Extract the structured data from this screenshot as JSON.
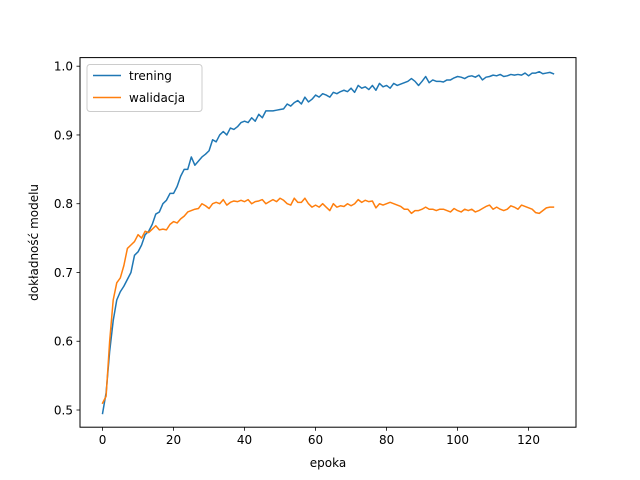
{
  "chart_data": {
    "type": "line",
    "title": "",
    "xlabel": "epoka",
    "ylabel": "dokładność modelu",
    "xlim": [
      -6.35,
      133.35
    ],
    "ylim": [
      0.475,
      1.0125
    ],
    "xticks": [
      0,
      20,
      40,
      60,
      80,
      100,
      120
    ],
    "yticks": [
      0.5,
      0.6,
      0.7,
      0.8,
      0.9,
      1.0
    ],
    "ytick_labels": [
      "0.5",
      "0.6",
      "0.7",
      "0.8",
      "0.9",
      "1.0"
    ],
    "grid": false,
    "legend_position": "upper-left",
    "series": [
      {
        "name": "trening",
        "color": "#1f77b4",
        "x": [
          0,
          1,
          2,
          3,
          4,
          5,
          6,
          7,
          8,
          9,
          10,
          11,
          12,
          13,
          14,
          15,
          16,
          17,
          18,
          19,
          20,
          21,
          22,
          23,
          24,
          25,
          26,
          27,
          28,
          29,
          30,
          31,
          32,
          33,
          34,
          35,
          36,
          37,
          38,
          39,
          40,
          41,
          42,
          43,
          44,
          45,
          46,
          47,
          48,
          49,
          50,
          51,
          52,
          53,
          54,
          55,
          56,
          57,
          58,
          59,
          60,
          61,
          62,
          63,
          64,
          65,
          66,
          67,
          68,
          69,
          70,
          71,
          72,
          73,
          74,
          75,
          76,
          77,
          78,
          79,
          80,
          81,
          82,
          83,
          84,
          85,
          86,
          87,
          88,
          89,
          90,
          91,
          92,
          93,
          94,
          95,
          96,
          97,
          98,
          99,
          100,
          101,
          102,
          103,
          104,
          105,
          106,
          107,
          108,
          109,
          110,
          111,
          112,
          113,
          114,
          115,
          116,
          117,
          118,
          119,
          120,
          121,
          122,
          123,
          124,
          125,
          126,
          127
        ],
        "values": [
          0.495,
          0.525,
          0.585,
          0.63,
          0.66,
          0.672,
          0.68,
          0.69,
          0.7,
          0.725,
          0.73,
          0.74,
          0.755,
          0.76,
          0.77,
          0.785,
          0.788,
          0.8,
          0.805,
          0.815,
          0.815,
          0.825,
          0.84,
          0.85,
          0.85,
          0.868,
          0.856,
          0.862,
          0.868,
          0.872,
          0.877,
          0.893,
          0.89,
          0.9,
          0.905,
          0.9,
          0.91,
          0.908,
          0.912,
          0.918,
          0.92,
          0.918,
          0.925,
          0.92,
          0.93,
          0.925,
          0.935,
          0.935,
          0.935,
          0.936,
          0.937,
          0.938,
          0.945,
          0.942,
          0.947,
          0.95,
          0.945,
          0.955,
          0.948,
          0.952,
          0.958,
          0.955,
          0.96,
          0.958,
          0.955,
          0.962,
          0.96,
          0.963,
          0.965,
          0.963,
          0.968,
          0.962,
          0.972,
          0.968,
          0.97,
          0.966,
          0.972,
          0.965,
          0.975,
          0.97,
          0.972,
          0.968,
          0.975,
          0.972,
          0.974,
          0.976,
          0.978,
          0.982,
          0.978,
          0.972,
          0.978,
          0.985,
          0.976,
          0.98,
          0.978,
          0.978,
          0.977,
          0.98,
          0.98,
          0.983,
          0.985,
          0.984,
          0.982,
          0.985,
          0.986,
          0.984,
          0.987,
          0.98,
          0.984,
          0.985,
          0.987,
          0.986,
          0.988,
          0.985,
          0.986,
          0.988,
          0.987,
          0.988,
          0.987,
          0.99,
          0.986,
          0.99,
          0.99,
          0.992,
          0.989,
          0.99,
          0.991,
          0.989
        ]
      },
      {
        "name": "walidacja",
        "color": "#ff7f0e",
        "x": [
          0,
          1,
          2,
          3,
          4,
          5,
          6,
          7,
          8,
          9,
          10,
          11,
          12,
          13,
          14,
          15,
          16,
          17,
          18,
          19,
          20,
          21,
          22,
          23,
          24,
          25,
          26,
          27,
          28,
          29,
          30,
          31,
          32,
          33,
          34,
          35,
          36,
          37,
          38,
          39,
          40,
          41,
          42,
          43,
          44,
          45,
          46,
          47,
          48,
          49,
          50,
          51,
          52,
          53,
          54,
          55,
          56,
          57,
          58,
          59,
          60,
          61,
          62,
          63,
          64,
          65,
          66,
          67,
          68,
          69,
          70,
          71,
          72,
          73,
          74,
          75,
          76,
          77,
          78,
          79,
          80,
          81,
          82,
          83,
          84,
          85,
          86,
          87,
          88,
          89,
          90,
          91,
          92,
          93,
          94,
          95,
          96,
          97,
          98,
          99,
          100,
          101,
          102,
          103,
          104,
          105,
          106,
          107,
          108,
          109,
          110,
          111,
          112,
          113,
          114,
          115,
          116,
          117,
          118,
          119,
          120,
          121,
          122,
          123,
          124,
          125,
          126,
          127
        ],
        "values": [
          0.51,
          0.52,
          0.6,
          0.66,
          0.685,
          0.692,
          0.71,
          0.735,
          0.74,
          0.745,
          0.755,
          0.75,
          0.76,
          0.758,
          0.763,
          0.768,
          0.762,
          0.763,
          0.762,
          0.77,
          0.774,
          0.772,
          0.778,
          0.782,
          0.788,
          0.79,
          0.792,
          0.793,
          0.8,
          0.797,
          0.793,
          0.8,
          0.802,
          0.8,
          0.806,
          0.798,
          0.802,
          0.804,
          0.803,
          0.805,
          0.803,
          0.806,
          0.8,
          0.803,
          0.804,
          0.806,
          0.8,
          0.803,
          0.806,
          0.803,
          0.808,
          0.805,
          0.8,
          0.798,
          0.808,
          0.802,
          0.802,
          0.808,
          0.8,
          0.795,
          0.798,
          0.795,
          0.8,
          0.795,
          0.79,
          0.8,
          0.795,
          0.797,
          0.796,
          0.8,
          0.797,
          0.8,
          0.806,
          0.802,
          0.805,
          0.803,
          0.804,
          0.794,
          0.8,
          0.798,
          0.8,
          0.802,
          0.8,
          0.798,
          0.796,
          0.792,
          0.792,
          0.786,
          0.79,
          0.79,
          0.792,
          0.795,
          0.792,
          0.792,
          0.79,
          0.792,
          0.792,
          0.79,
          0.788,
          0.793,
          0.79,
          0.788,
          0.792,
          0.79,
          0.792,
          0.788,
          0.79,
          0.793,
          0.796,
          0.798,
          0.792,
          0.795,
          0.792,
          0.79,
          0.792,
          0.797,
          0.795,
          0.792,
          0.798,
          0.796,
          0.794,
          0.792,
          0.787,
          0.786,
          0.79,
          0.794,
          0.795,
          0.795
        ]
      }
    ]
  }
}
